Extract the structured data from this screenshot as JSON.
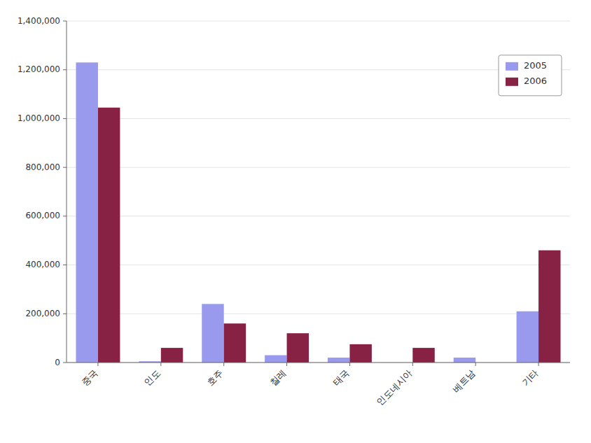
{
  "chart_data": {
    "type": "bar",
    "categories": [
      "중국",
      "인도",
      "호주",
      "칠레",
      "태국",
      "인도네시아",
      "베트남",
      "기타"
    ],
    "series": [
      {
        "name": "2005",
        "color": "#9999ee",
        "values": [
          1230000,
          5000,
          240000,
          30000,
          20000,
          0,
          20000,
          210000
        ]
      },
      {
        "name": "2006",
        "color": "#882244",
        "values": [
          1045000,
          60000,
          160000,
          120000,
          75000,
          60000,
          0,
          460000
        ]
      }
    ],
    "ylim": [
      0,
      1400000
    ],
    "yticks": [
      0,
      {
        "value": 200000,
        "label": "200,000"
      },
      {
        "value": 400000,
        "label": "400,000"
      },
      {
        "value": 600000,
        "label": "600,000"
      },
      {
        "value": 800000,
        "label": "800,000"
      },
      {
        "value": 1000000,
        "label": "1,000,000"
      },
      {
        "value": 1200000,
        "label": "1,200,000"
      },
      {
        "value": 1400000,
        "label": "1,400,000"
      }
    ],
    "grid": true,
    "legend": "upper right"
  }
}
